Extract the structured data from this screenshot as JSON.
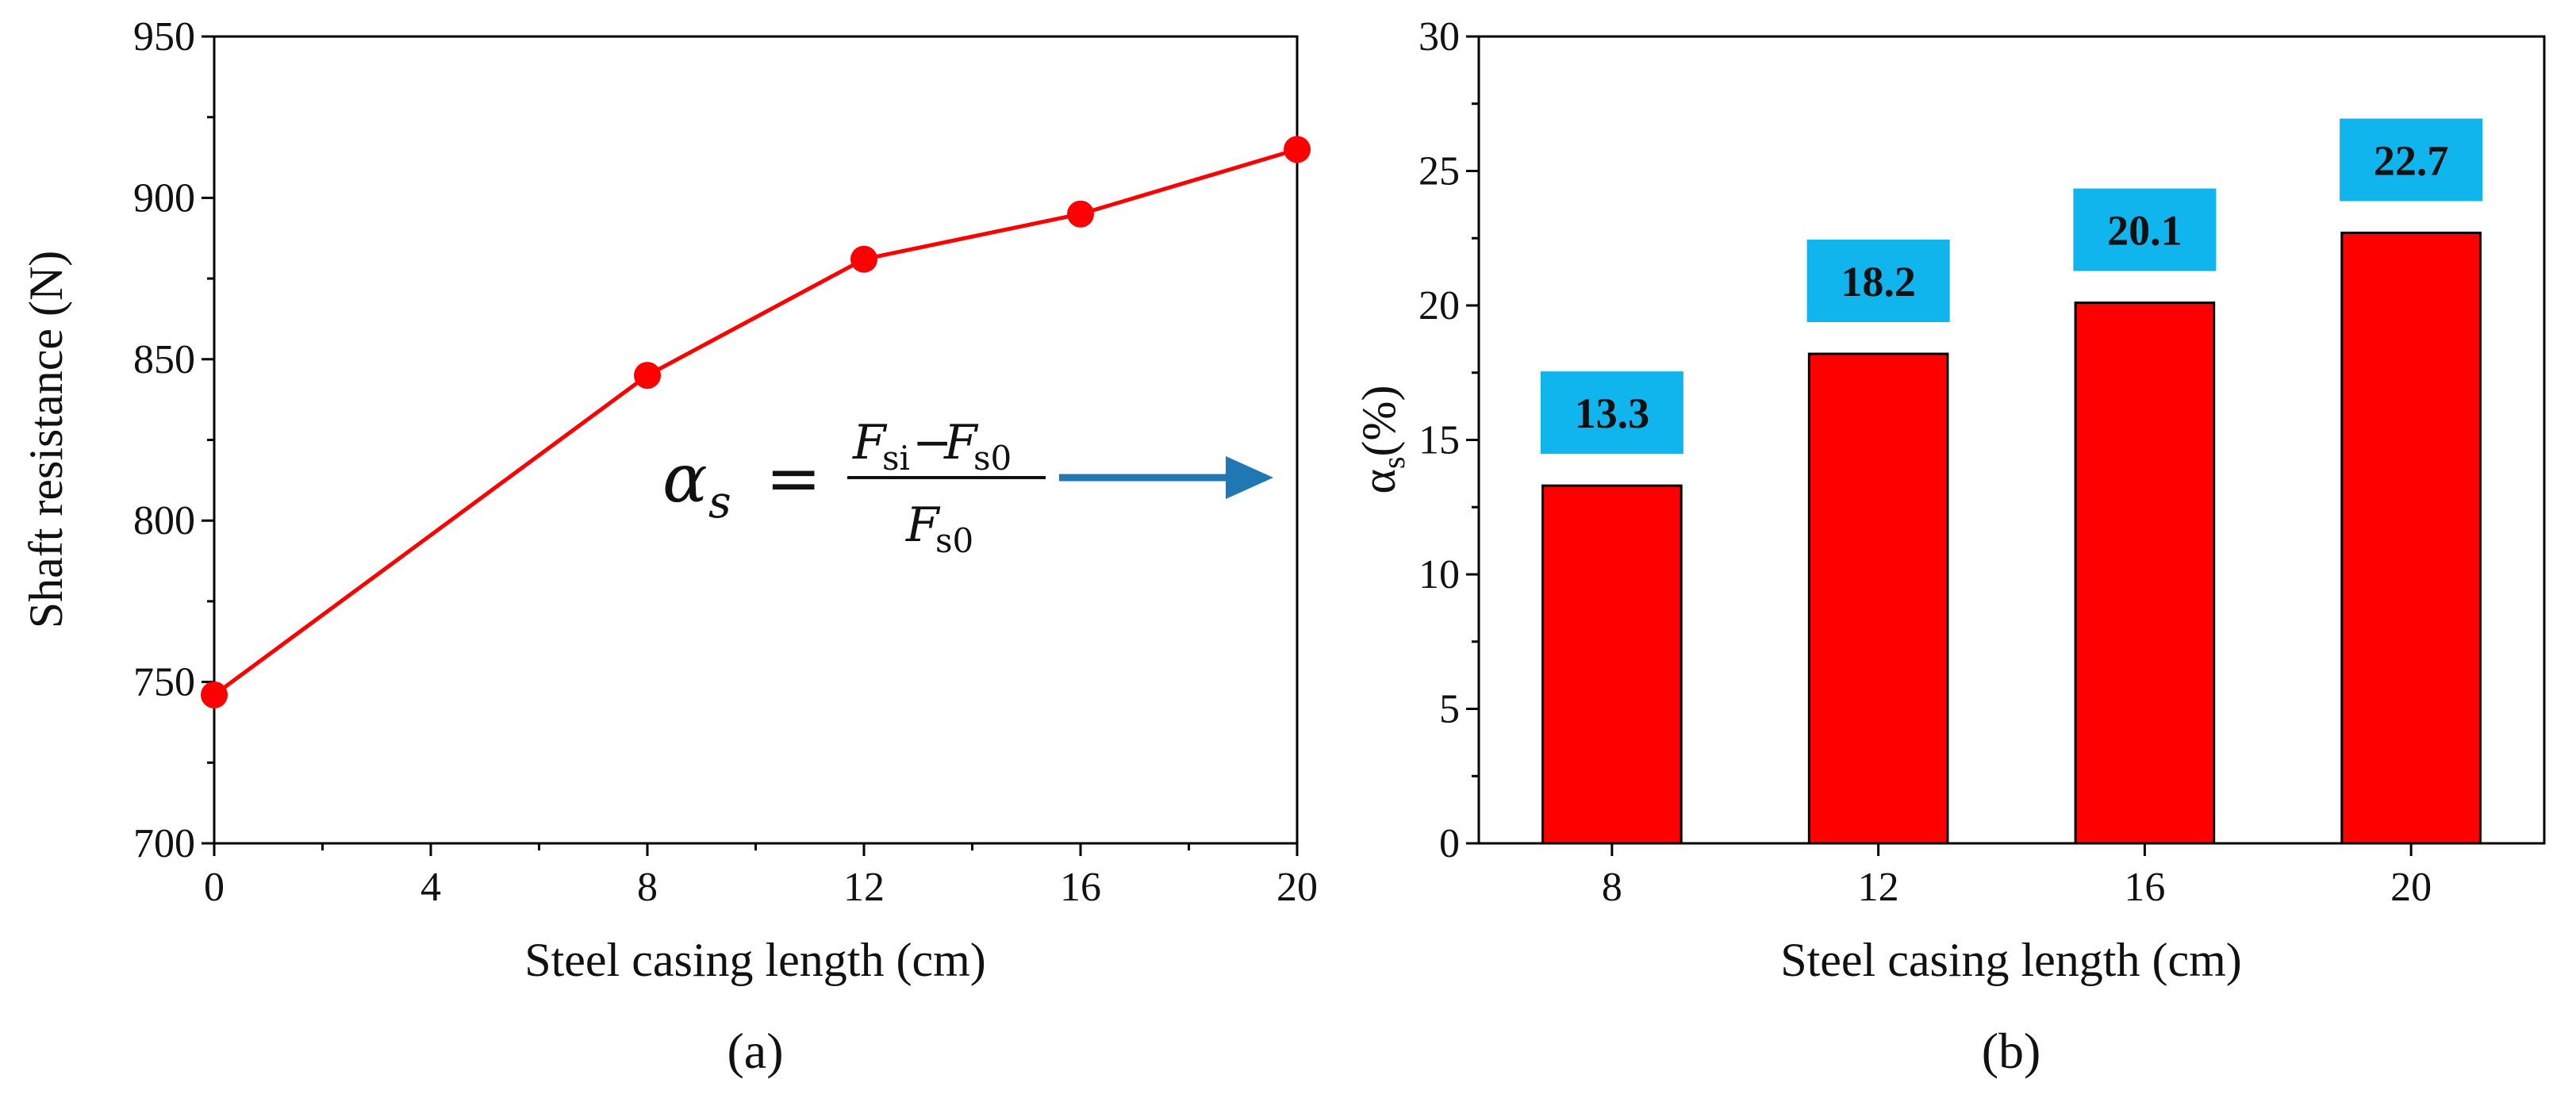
{
  "chart_data": [
    {
      "type": "line",
      "panel": "(a)",
      "x": [
        0,
        8,
        12,
        16,
        20
      ],
      "y": [
        746,
        845,
        881,
        895,
        915
      ],
      "xlabel": "Steel casing length (cm)",
      "ylabel": "Shaft resistance (N)",
      "xlim": [
        0,
        20
      ],
      "ylim": [
        700,
        950
      ],
      "xticks": [
        "0",
        "4",
        "8",
        "12",
        "16",
        "20"
      ],
      "yticks": [
        "700",
        "750",
        "800",
        "850",
        "900",
        "950"
      ],
      "series_color": "#ff0000",
      "annotation": {
        "alpha": "α",
        "sub": "s",
        "equals": "=",
        "num_a": "F",
        "num_a_sub": "si",
        "minus": "−",
        "num_b": "F",
        "num_b_sub": "s0",
        "den": "F",
        "den_sub": "s0",
        "arrow_color": "#1f77b4"
      }
    },
    {
      "type": "bar",
      "panel": "(b)",
      "categories": [
        "8",
        "12",
        "16",
        "20"
      ],
      "values": [
        13.3,
        18.2,
        20.1,
        22.7
      ],
      "value_labels": [
        "13.3",
        "18.2",
        "20.1",
        "22.7"
      ],
      "xlabel": "Steel casing length (cm)",
      "ylabel_main": "α",
      "ylabel_sub": "s",
      "ylabel_unit": "(%)",
      "ylim": [
        0,
        30
      ],
      "yticks": [
        "0",
        "5",
        "10",
        "15",
        "20",
        "25",
        "30"
      ],
      "bar_color": "#ff0000",
      "label_box_color": "#11b5ee"
    }
  ]
}
